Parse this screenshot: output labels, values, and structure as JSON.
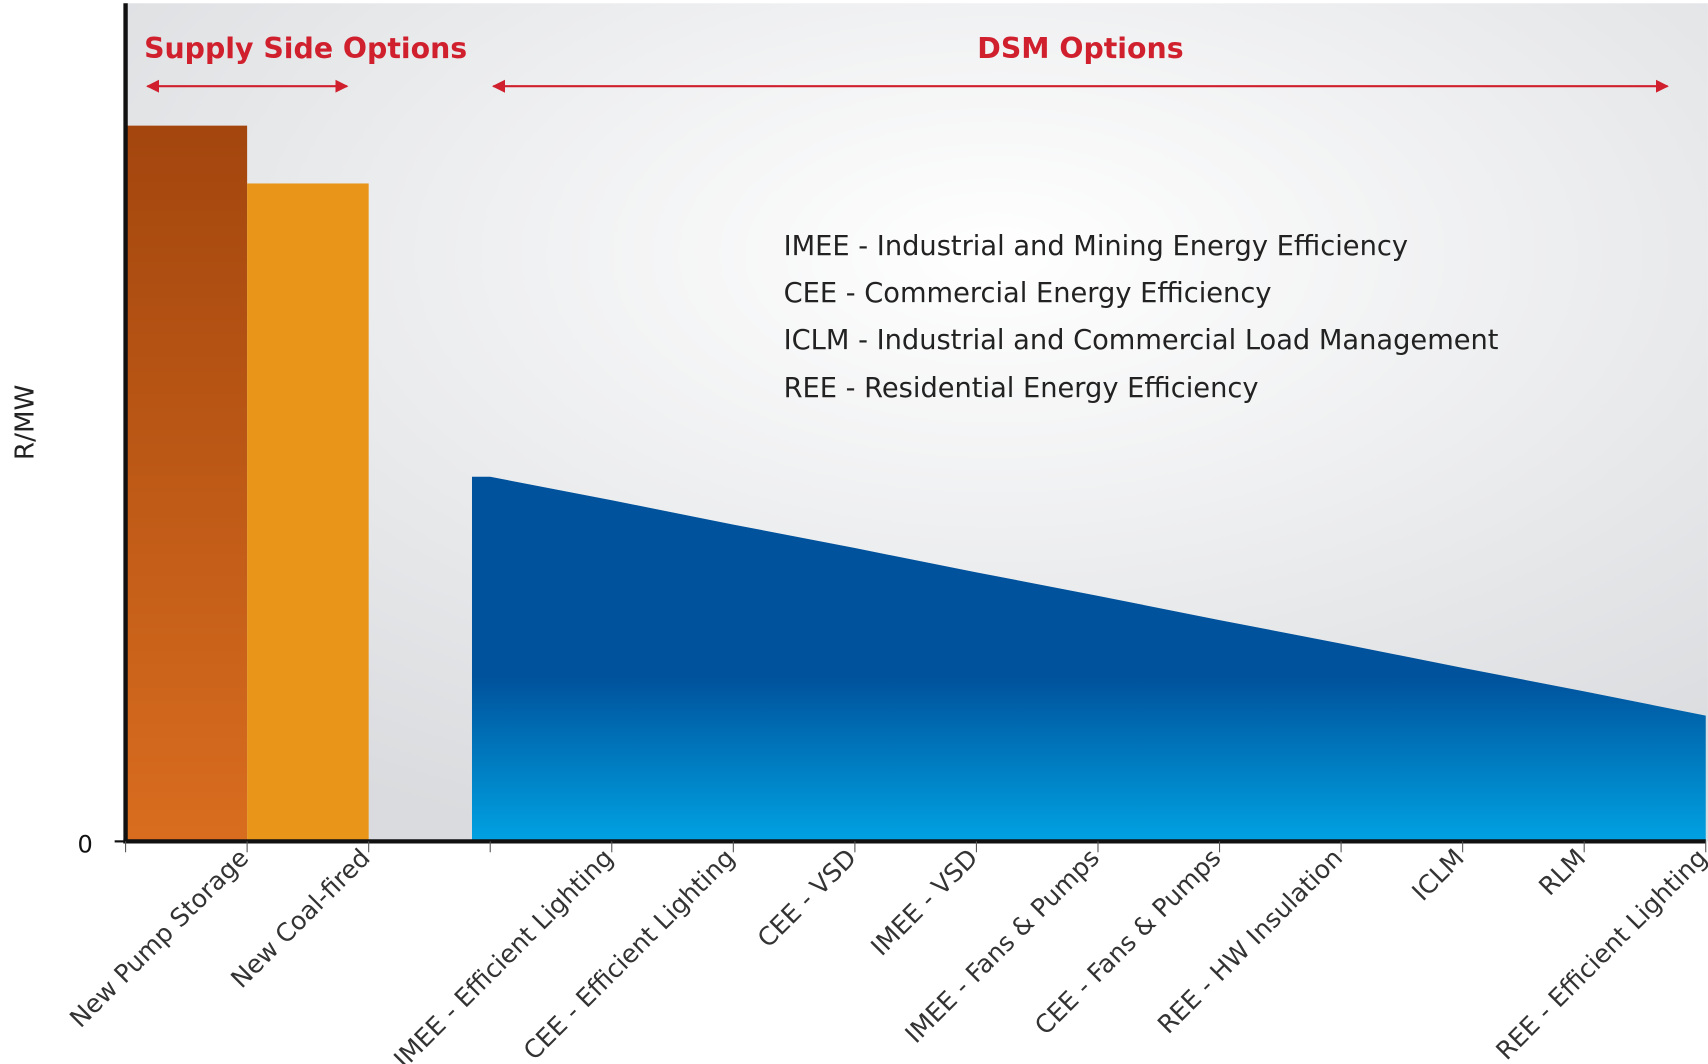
{
  "chart_data": {
    "type": "bar",
    "y_label": "R/MW",
    "annotations": [
      "Supply Side Options",
      "DSM Options"
    ],
    "definitions": [
      "IMEE - Industrial and Mining Energy Efficiency",
      "CEE - Commercial Energy Efficiency",
      "ICLM - Industrial and Commercial Load Management",
      "REE - Residential Energy Efficiency"
    ],
    "categories": [
      "New Pump Storage",
      "New Coal-fired",
      null,
      "IMEE - Efficient Lighting",
      "CEE - Efficient Lighting",
      "CEE - VSD",
      "IMEE - VSD",
      "IMEE - Fans & Pumps",
      "CEE - Fans & Pumps",
      "REE - HW Insulation",
      "ICLM",
      "RLM",
      "REE - Efficient Lighting"
    ],
    "series": [
      {
        "type": "bar",
        "colors": [
          "#a3460e",
          "#e8951a"
        ],
        "values": [
          85.4,
          78.5,
          null,
          null,
          null,
          null,
          null,
          null,
          null,
          null,
          null,
          null,
          null
        ]
      },
      {
        "type": "area",
        "color": "#00529c",
        "values": [
          null,
          null,
          43.5,
          40.7,
          37.8,
          35.0,
          32.1,
          29.3,
          26.4,
          23.6,
          20.7,
          17.9,
          15.0
        ]
      }
    ],
    "ylim": [
      0,
      100
    ],
    "yticks": [
      0
    ],
    "grid": false
  }
}
